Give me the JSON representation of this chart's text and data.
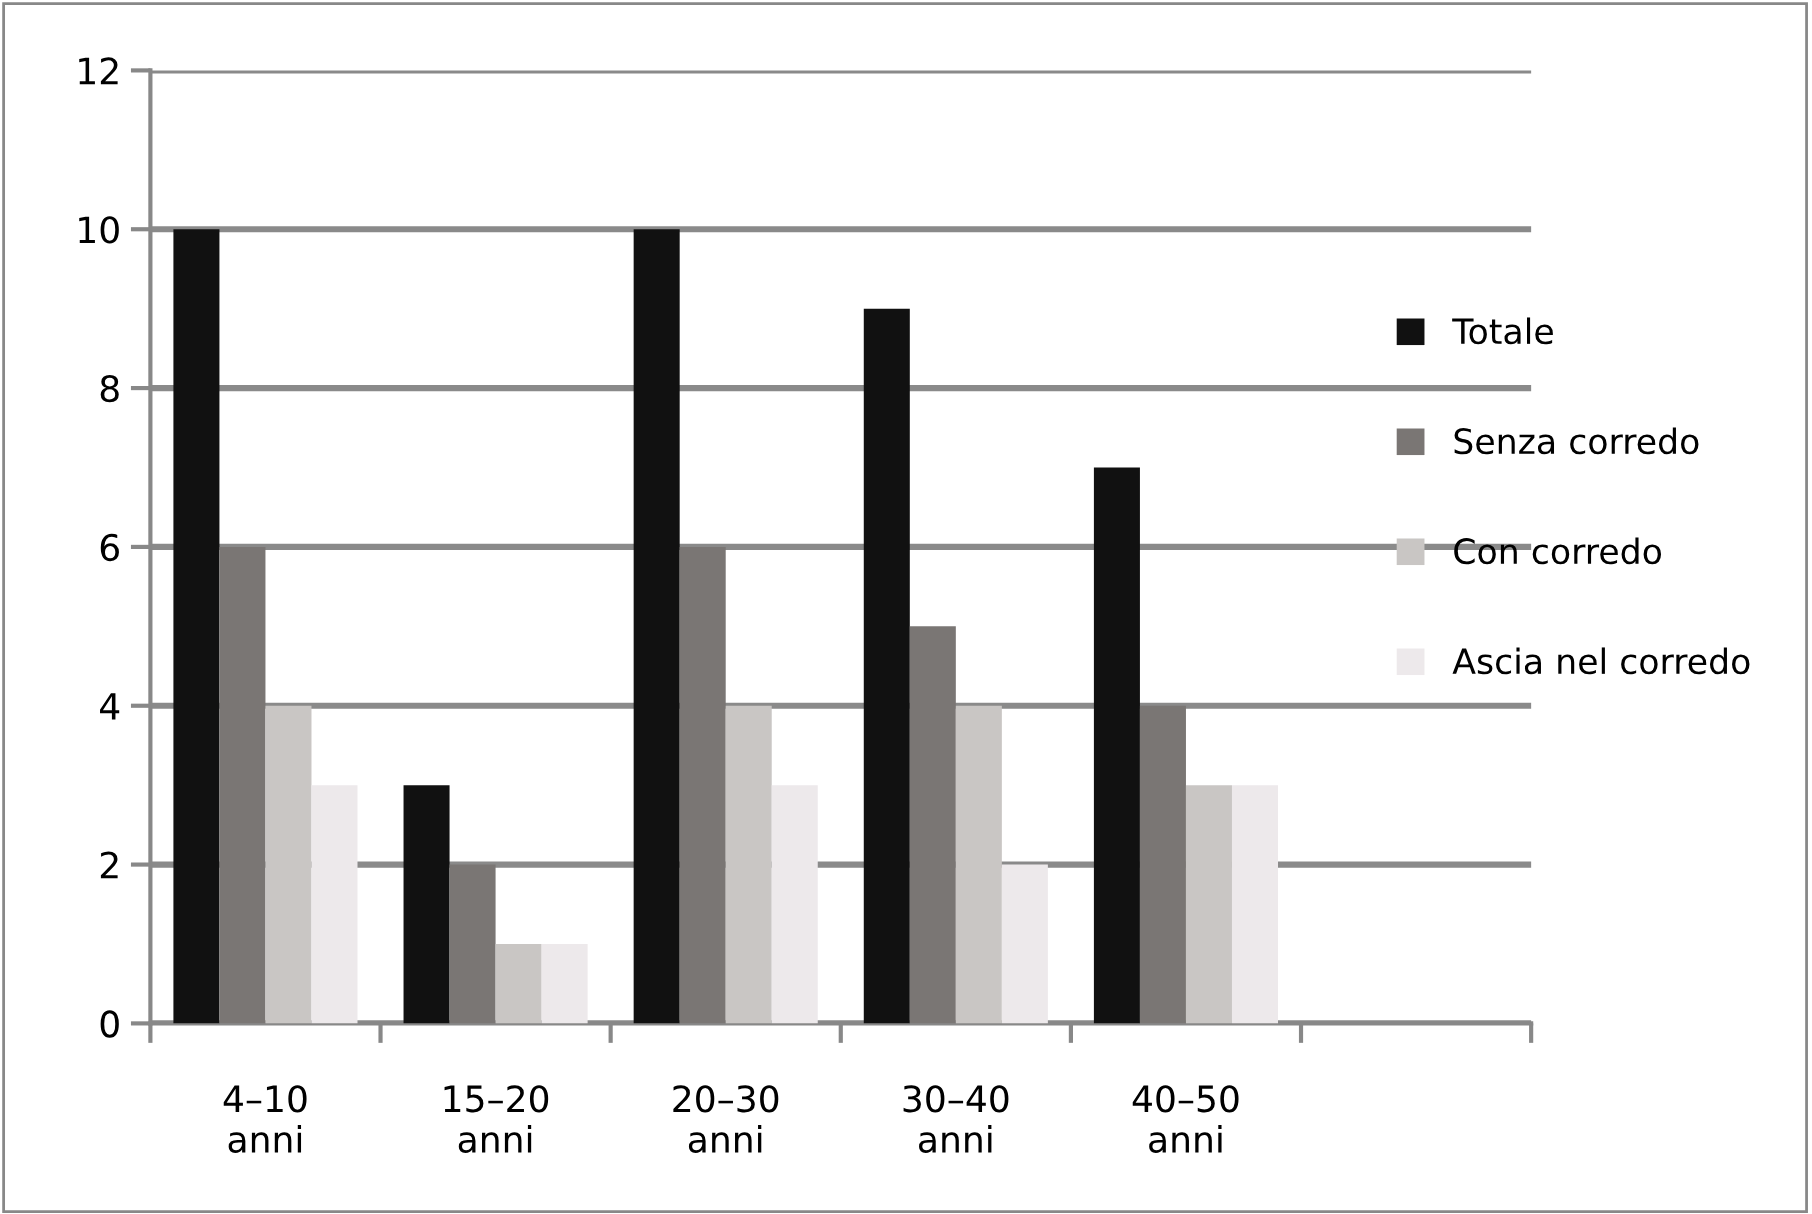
{
  "chart_data": {
    "type": "bar",
    "categories": [
      "4–10\nanni",
      "15–20\nanni",
      "20–30\nanni",
      "30–40\nanni",
      "40–50\nanni",
      null
    ],
    "series": [
      {
        "name": "Totale",
        "color": "#111111",
        "values": [
          10,
          3,
          10,
          9,
          7,
          null
        ]
      },
      {
        "name": "Senza corredo",
        "color": "#7a7674",
        "values": [
          6,
          2,
          6,
          5,
          4,
          null
        ]
      },
      {
        "name": "Con corredo",
        "color": "#c9c6c4",
        "values": [
          4,
          1,
          4,
          4,
          3,
          null
        ]
      },
      {
        "name": "Ascia nel corredo",
        "color": "#ede9eb",
        "values": [
          3,
          1,
          3,
          2,
          3,
          null
        ]
      }
    ],
    "ylim": [
      0,
      12
    ],
    "yticks": [
      0,
      2,
      4,
      6,
      8,
      10,
      12
    ],
    "grid": "y",
    "legend": "right"
  }
}
